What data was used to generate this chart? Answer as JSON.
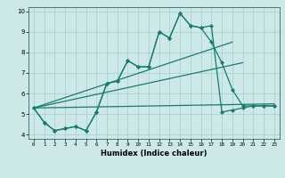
{
  "xlabel": "Humidex (Indice chaleur)",
  "bg_color": "#cce8e8",
  "grid_color": "#aacccc",
  "line_color": "#1a7a6e",
  "xlim": [
    -0.5,
    23.5
  ],
  "ylim": [
    3.8,
    10.2
  ],
  "xticks": [
    0,
    1,
    2,
    3,
    4,
    5,
    6,
    7,
    8,
    9,
    10,
    11,
    12,
    13,
    14,
    15,
    16,
    17,
    18,
    19,
    20,
    21,
    22,
    23
  ],
  "yticks": [
    4,
    5,
    6,
    7,
    8,
    9,
    10
  ],
  "lines": [
    {
      "x": [
        0,
        1,
        2,
        3,
        4,
        5,
        6,
        7,
        8,
        9,
        10,
        11,
        12,
        13,
        14,
        15,
        16,
        17,
        18,
        19,
        20,
        21,
        22,
        23
      ],
      "y": [
        5.3,
        4.6,
        4.2,
        4.3,
        4.4,
        4.2,
        5.1,
        6.5,
        6.6,
        7.6,
        7.3,
        7.3,
        9.0,
        8.7,
        9.9,
        9.3,
        9.2,
        9.3,
        5.1,
        5.2,
        5.3,
        5.4,
        5.4,
        5.4
      ],
      "marker": "D",
      "markersize": 2.2,
      "linewidth": 0.9
    },
    {
      "x": [
        0,
        1,
        2,
        3,
        4,
        5,
        6,
        7,
        8,
        9,
        10,
        11,
        12,
        13,
        14,
        15,
        16,
        17,
        18,
        19,
        20,
        21,
        22,
        23
      ],
      "y": [
        5.3,
        4.6,
        4.2,
        4.3,
        4.4,
        4.2,
        5.1,
        6.5,
        6.6,
        7.6,
        7.3,
        7.3,
        9.0,
        8.7,
        9.9,
        9.3,
        9.2,
        8.5,
        7.5,
        6.2,
        5.4,
        5.4,
        5.4,
        5.4
      ],
      "marker": "D",
      "markersize": 2.2,
      "linewidth": 0.9
    },
    {
      "x": [
        0,
        19
      ],
      "y": [
        5.3,
        8.5
      ],
      "marker": null,
      "markersize": 0,
      "linewidth": 0.9
    },
    {
      "x": [
        0,
        20
      ],
      "y": [
        5.3,
        7.5
      ],
      "marker": null,
      "markersize": 0,
      "linewidth": 0.9
    },
    {
      "x": [
        0,
        23
      ],
      "y": [
        5.3,
        5.5
      ],
      "marker": null,
      "markersize": 0,
      "linewidth": 0.9
    }
  ]
}
